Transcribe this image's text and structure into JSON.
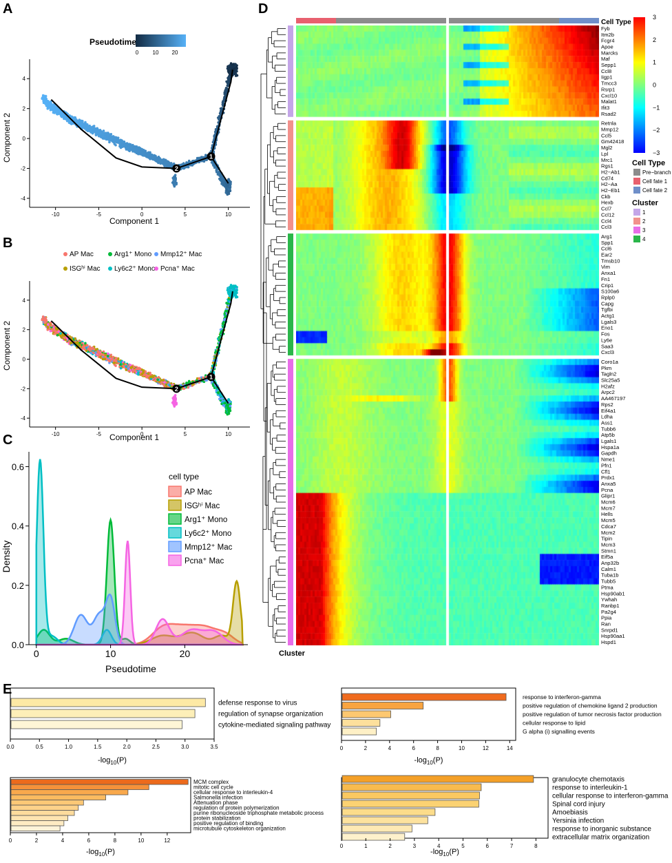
{
  "panel_letters": {
    "a": "A",
    "b": "B",
    "c": "C",
    "d": "D",
    "e": "E"
  },
  "panel_a": {
    "legend_title": "Pseudotime",
    "legend_ticks": [
      "0",
      "10",
      "20"
    ],
    "xlabel": "Component 1",
    "ylabel": "Component 2",
    "xticks": [
      "-10",
      "-5",
      "0",
      "5",
      "10"
    ],
    "yticks": [
      "4",
      "2",
      "0",
      "-2",
      "-4"
    ],
    "branch_points": [
      "1",
      "2"
    ]
  },
  "panel_b": {
    "legend": [
      {
        "label": "AP Mac",
        "color": "#F8766D"
      },
      {
        "label": "Arg1⁺ Mono",
        "color": "#00BA38"
      },
      {
        "label": "Mmp12⁺ Mac",
        "color": "#619CFF"
      },
      {
        "label": "ISGʰⁱ Mac",
        "color": "#B79F00"
      },
      {
        "label": "Ly6c2⁺ Mono",
        "color": "#00BFC4"
      },
      {
        "label": "Pcna⁺ Mac",
        "color": "#F564E3"
      }
    ],
    "xlabel": "Component 1",
    "ylabel": "Component 2",
    "xticks": [
      "-10",
      "-5",
      "0",
      "5",
      "10"
    ],
    "yticks": [
      "4",
      "2",
      "0",
      "-2",
      "-4"
    ],
    "branch_points": [
      "1",
      "2"
    ]
  },
  "chart_data": [
    {
      "type": "area",
      "title": "",
      "xlabel": "Pseudotime",
      "ylabel": "Density",
      "xticks": [
        "0",
        "10",
        "20"
      ],
      "yticks": [
        "0.0",
        "0.2",
        "0.4",
        "0.6"
      ],
      "xlim": [
        -1,
        28.5
      ],
      "ylim": [
        0,
        0.65
      ],
      "legend_title": "cell type",
      "series": [
        {
          "name": "AP Mac",
          "color": "#F8766D",
          "peaks": [
            [
              17,
              0.05,
              1.5
            ],
            [
              20,
              0.055,
              1.8
            ],
            [
              23,
              0.045,
              1.5
            ],
            [
              25.5,
              0.03,
              1.2
            ]
          ]
        },
        {
          "name": "ISGʰⁱ Mac",
          "color": "#B79F00",
          "peaks": [
            [
              17,
              0.03,
              1.5
            ],
            [
              21,
              0.04,
              1.5
            ],
            [
              27,
              0.21,
              0.5
            ],
            [
              25,
              0.03,
              1.0
            ]
          ]
        },
        {
          "name": "Arg1⁺ Mono",
          "color": "#00BA38",
          "peaks": [
            [
              1,
              0.05,
              0.8
            ],
            [
              4,
              0.02,
              1.0
            ],
            [
              10,
              0.42,
              0.5
            ],
            [
              12,
              0.02,
              0.6
            ]
          ]
        },
        {
          "name": "Ly6c2⁺ Mono",
          "color": "#00BFC4",
          "peaks": [
            [
              0.5,
              0.62,
              0.45
            ],
            [
              2,
              0.03,
              0.8
            ],
            [
              9.5,
              0.05,
              0.6
            ]
          ]
        },
        {
          "name": "Mmp12⁺ Mac",
          "color": "#619CFF",
          "peaks": [
            [
              6,
              0.1,
              0.9
            ],
            [
              8.5,
              0.1,
              0.8
            ],
            [
              10,
              0.15,
              0.6
            ]
          ]
        },
        {
          "name": "Pcna⁺ Mac",
          "color": "#F564E3",
          "peaks": [
            [
              12.3,
              0.35,
              0.35
            ],
            [
              17,
              0.085,
              0.9
            ],
            [
              21,
              0.05,
              1.5
            ],
            [
              24,
              0.04,
              1.2
            ]
          ]
        }
      ]
    }
  ],
  "panel_d": {
    "top_bar_label": "Cell Type",
    "colorbar_ticks": [
      "3",
      "2",
      "1",
      "0",
      "−1",
      "−2",
      "−3"
    ],
    "celltype_legend_title": "Cell Type",
    "celltype_legend": [
      {
        "label": "Pre−branch",
        "color": "#8c8c8c"
      },
      {
        "label": "Cell fate 1",
        "color": "#e8606e"
      },
      {
        "label": "Cell fate 2",
        "color": "#6f8fc9"
      }
    ],
    "cluster_legend_title": "Cluster",
    "cluster_legend": [
      {
        "label": "1",
        "color": "#c4a6e8"
      },
      {
        "label": "2",
        "color": "#f2918c"
      },
      {
        "label": "3",
        "color": "#e86ee8"
      },
      {
        "label": "4",
        "color": "#2ab64a"
      }
    ],
    "bottom_label": "Cluster",
    "clusters": [
      {
        "id": "1",
        "color": "#c4a6e8",
        "genes": [
          "Fyb",
          "Itm2b",
          "Fcgr4",
          "Apoe",
          "Marcks",
          "Maf",
          "Sepp1",
          "Ccl8",
          "Iigp1",
          "Tmcc3",
          "Rsrp1",
          "Cxcl10",
          "Malat1",
          "Ifit3",
          "Rsad2"
        ]
      },
      {
        "id": "2",
        "color": "#f2918c",
        "genes": [
          "Retnla",
          "Mmp12",
          "Ccl5",
          "Gm42418",
          "Mgl2",
          "Lpl",
          "Mrc1",
          "Rgs1",
          "H2−Ab1",
          "Cd74",
          "H2−Aa",
          "H2−Eb1",
          "Ckb",
          "Hexb",
          "Ccl7",
          "Ccl12",
          "Ccl4",
          "Ccl3"
        ]
      },
      {
        "id": "4",
        "color": "#2ab64a",
        "genes": [
          "Arg1",
          "Spp1",
          "Ccl6",
          "Ear2",
          "Tmsb10",
          "Vim",
          "Anxa1",
          "Fn1",
          "Crip1",
          "S100a6",
          "Rplp0",
          "Capg",
          "Tgfbi",
          "Actg1",
          "Lgals3",
          "Eno1",
          "Fos",
          "Ly6e",
          "Saa3",
          "Cxcl3"
        ]
      },
      {
        "id": "3",
        "color": "#e86ee8",
        "genes": [
          "Coro1a",
          "Pkm",
          "Tagln2",
          "Slc25a5",
          "H2afz",
          "Arpc2",
          "AA467197",
          "Rps2",
          "Eif4a1",
          "Ldha",
          "Ass1",
          "Tubb6",
          "Atp5b",
          "Lgals1",
          "Hspa1a",
          "Gapdh",
          "Nme1",
          "Pfn1",
          "Cfl1",
          "Prdx1",
          "Anxa5",
          "Pcna",
          "Glipr1",
          "Mcm6",
          "Mcm7",
          "Hells",
          "Mcm5",
          "Cdca7",
          "Mcm2",
          "Tipin",
          "Mcm3",
          "Stmn1",
          "Eif5a",
          "Anp32b",
          "Calm1",
          "Tuba1b",
          "Tubb5",
          "Ptma",
          "Hsp90ab1",
          "Ywhah",
          "Ranbp1",
          "Pa2g4",
          "Ppia",
          "Ran",
          "Snrpd1",
          "Hsp90aa1",
          "Hspd1"
        ]
      }
    ]
  },
  "panel_e": [
    {
      "xlabel": "-log10(P)",
      "xticks": [
        "0.0",
        "0.5",
        "1.0",
        "1.5",
        "2.0",
        "2.5",
        "3.0",
        "3.5"
      ],
      "xmax": 3.5,
      "bars": [
        {
          "label": "defense response to virus",
          "value": 3.35,
          "color": "#fde9a5"
        },
        {
          "label": "regulation of synapse organization",
          "value": 3.17,
          "color": "#fdefb8"
        },
        {
          "label": "cytokine-mediated signaling pathway",
          "value": 2.95,
          "color": "#fef6d6"
        }
      ]
    },
    {
      "xlabel": "-log10(P)",
      "xticks": [
        "0",
        "2",
        "4",
        "6",
        "8",
        "10",
        "12",
        "14"
      ],
      "xmax": 14.5,
      "bars": [
        {
          "label": "response to interferon-gamma",
          "value": 13.7,
          "color": "#f06b1e"
        },
        {
          "label": "positive regulation of chemokine ligand 2 production",
          "value": 6.8,
          "color": "#f9a440"
        },
        {
          "label": "positive regulation of tumor necrosis factor production",
          "value": 4.1,
          "color": "#fdc870"
        },
        {
          "label": "cellular response to lipid",
          "value": 3.2,
          "color": "#fde09c"
        },
        {
          "label": "G alpha (i) signalling events",
          "value": 2.9,
          "color": "#fef0c6"
        }
      ]
    },
    {
      "xlabel": "-log10(P)",
      "xticks": [
        "0",
        "2",
        "4",
        "6",
        "8",
        "10",
        "12"
      ],
      "xmax": 13.8,
      "bars": [
        {
          "label": "MCM complex",
          "value": 13.6,
          "color": "#ec6a1c"
        },
        {
          "label": "mitotic cell cycle",
          "value": 10.6,
          "color": "#f5913a"
        },
        {
          "label": "cellular response to interleukin-4",
          "value": 9.0,
          "color": "#f9a94c"
        },
        {
          "label": "Salmonella infection",
          "value": 7.3,
          "color": "#fbbb60"
        },
        {
          "label": "Attenuation phase",
          "value": 5.6,
          "color": "#fcc876"
        },
        {
          "label": "regulation of protein polymerization",
          "value": 5.2,
          "color": "#fdd28a"
        },
        {
          "label": "purine ribonucleoside triphosphate metabolic process",
          "value": 4.9,
          "color": "#fddb9c"
        },
        {
          "label": "protein stabilization",
          "value": 4.4,
          "color": "#fee4b0"
        },
        {
          "label": "positive regulation of binding",
          "value": 4.1,
          "color": "#feebc2"
        },
        {
          "label": "microtubule cytoskeleton organization",
          "value": 3.8,
          "color": "#fef3d8"
        }
      ]
    },
    {
      "xlabel": "-log10(P)",
      "xticks": [
        "0",
        "1",
        "2",
        "3",
        "4",
        "5",
        "6",
        "7",
        "8"
      ],
      "xmax": 8.5,
      "bars": [
        {
          "label": "granulocyte chemotaxis",
          "value": 7.9,
          "color": "#f4a028"
        },
        {
          "label": "response to interleukin-1",
          "value": 5.75,
          "color": "#f8bb4e"
        },
        {
          "label": "cellular response to interferon-gamma",
          "value": 5.68,
          "color": "#fac860"
        },
        {
          "label": "Spinal cord injury",
          "value": 5.65,
          "color": "#fbd272"
        },
        {
          "label": "Amoebiasis",
          "value": 3.85,
          "color": "#fcdc8a"
        },
        {
          "label": "Yersinia infection",
          "value": 3.55,
          "color": "#fde29e"
        },
        {
          "label": "response to inorganic substance",
          "value": 2.9,
          "color": "#fee9b4"
        },
        {
          "label": "extracellular matrix organization",
          "value": 2.6,
          "color": "#fef1cc"
        }
      ]
    }
  ]
}
